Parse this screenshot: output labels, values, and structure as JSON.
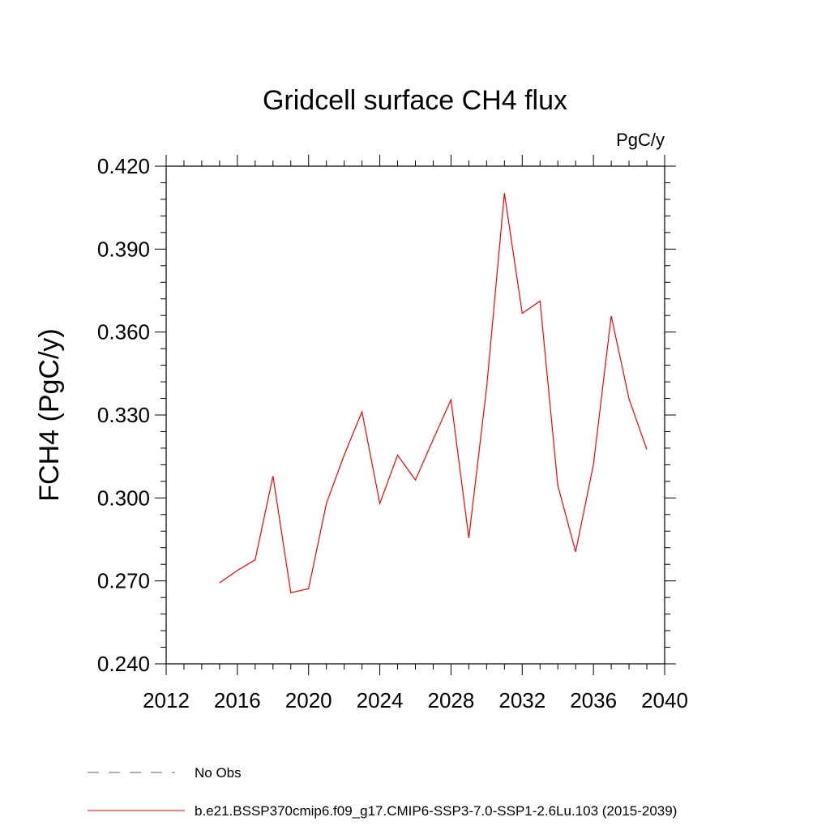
{
  "chart_data": {
    "type": "line",
    "title": "Gridcell surface CH4 flux",
    "units": "PgC/y",
    "xlabel": "",
    "ylabel": "FCH4  (PgC/y)",
    "xlim": [
      2012,
      2040
    ],
    "ylim": [
      0.24,
      0.42
    ],
    "x_ticks": [
      "2012",
      "2016",
      "2020",
      "2024",
      "2028",
      "2032",
      "2036",
      "2040"
    ],
    "y_ticks": [
      "0.240",
      "0.270",
      "0.300",
      "0.330",
      "0.360",
      "0.390",
      "0.420"
    ],
    "grid": false,
    "legend_position": "bottom",
    "series": [
      {
        "name": "b.e21.BSSP370cmip6.f09_g17.CMIP6-SSP3-7.0-SSP1-2.6Lu.103 (2015-2039)",
        "color": "#ff0000",
        "x": [
          2015,
          2016,
          2017,
          2018,
          2019,
          2020,
          2021,
          2022,
          2023,
          2024,
          2025,
          2026,
          2027,
          2028,
          2029,
          2030,
          2031,
          2032,
          2033,
          2034,
          2035,
          2036,
          2037,
          2038,
          2039
        ],
        "y": [
          0.2693,
          0.2738,
          0.2776,
          0.3079,
          0.2657,
          0.2672,
          0.298,
          0.3155,
          0.3312,
          0.298,
          0.3155,
          0.3065,
          0.3212,
          0.3355,
          0.2855,
          0.34,
          0.4102,
          0.3668,
          0.3712,
          0.3045,
          0.2805,
          0.312,
          0.3658,
          0.3358,
          0.3175
        ]
      }
    ],
    "legend": [
      {
        "label": "No Obs",
        "color": "#5555aa",
        "dash": true
      },
      {
        "label": "b.e21.BSSP370cmip6.f09_g17.CMIP6-SSP3-7.0-SSP1-2.6Lu.103 (2015-2039)",
        "color": "#ff0000",
        "dash": false
      }
    ]
  }
}
